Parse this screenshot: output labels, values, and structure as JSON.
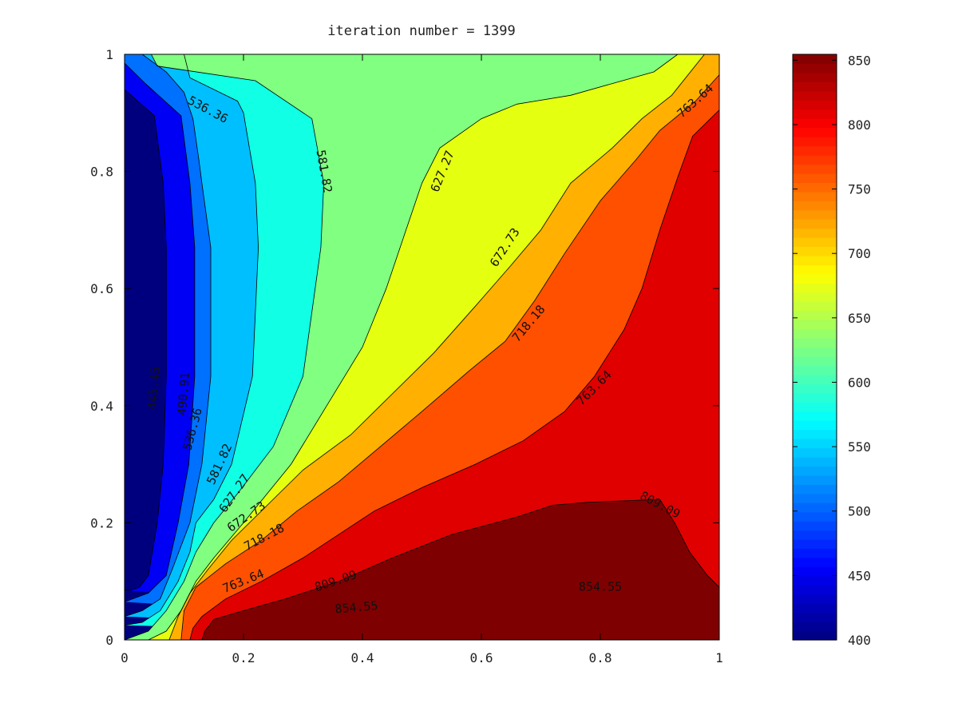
{
  "chart_data": {
    "type": "contour",
    "title": "iteration number = 1399",
    "xlabel": "",
    "ylabel": "",
    "xlim": [
      0,
      1
    ],
    "ylim": [
      0,
      1
    ],
    "x_ticks": [
      "0",
      "0.2",
      "0.4",
      "0.6",
      "0.8",
      "1"
    ],
    "y_ticks": [
      "0",
      "0.2",
      "0.4",
      "0.6",
      "0.8",
      "1"
    ],
    "colorbar": {
      "colormap": "jet",
      "range": [
        400,
        854.55
      ],
      "ticks": [
        "400",
        "450",
        "500",
        "550",
        "600",
        "650",
        "700",
        "750",
        "800",
        "850"
      ]
    },
    "levels": [
      445.45,
      490.91,
      536.36,
      581.82,
      627.27,
      672.73,
      718.18,
      763.64,
      809.09,
      854.55
    ],
    "band_colors": [
      "#00007F",
      "#0000F5",
      "#0070FF",
      "#00BFFF",
      "#10FFE5",
      "#80FF80",
      "#E5FF10",
      "#FFB000",
      "#FF5000",
      "#E00000",
      "#7F0000"
    ],
    "contours": [
      {
        "level": 445.45,
        "points": [
          [
            0,
            0.94
          ],
          [
            0.05,
            0.895
          ],
          [
            0.065,
            0.78
          ],
          [
            0.07,
            0.67
          ],
          [
            0.07,
            0.45
          ],
          [
            0.065,
            0.3
          ],
          [
            0.055,
            0.2
          ],
          [
            0.04,
            0.11
          ],
          [
            0.025,
            0.09
          ],
          [
            0.01,
            0.085
          ],
          [
            0,
            0.085
          ]
        ]
      },
      {
        "level": 490.91,
        "points": [
          [
            0,
            0.985
          ],
          [
            0.035,
            0.95
          ],
          [
            0.095,
            0.895
          ],
          [
            0.11,
            0.78
          ],
          [
            0.118,
            0.67
          ],
          [
            0.118,
            0.45
          ],
          [
            0.108,
            0.3
          ],
          [
            0.09,
            0.2
          ],
          [
            0.07,
            0.11
          ],
          [
            0.04,
            0.08
          ],
          [
            0,
            0.065
          ]
        ]
      },
      {
        "level": 536.36,
        "points": [
          [
            0.03,
            1
          ],
          [
            0.07,
            0.97
          ],
          [
            0.1,
            0.935
          ],
          [
            0.115,
            0.89
          ],
          [
            0.125,
            0.82
          ],
          [
            0.13,
            0.78
          ],
          [
            0.145,
            0.67
          ],
          [
            0.145,
            0.45
          ],
          [
            0.13,
            0.3
          ],
          [
            0.11,
            0.2
          ],
          [
            0.08,
            0.12
          ],
          [
            0.06,
            0.07
          ],
          [
            0.03,
            0.05
          ],
          [
            0,
            0.04
          ]
        ]
      },
      {
        "level": 581.82,
        "points": [
          [
            0.1,
            1
          ],
          [
            0.11,
            0.96
          ],
          [
            0.19,
            0.92
          ],
          [
            0.2,
            0.9
          ],
          [
            0.22,
            0.78
          ],
          [
            0.225,
            0.67
          ],
          [
            0.215,
            0.45
          ],
          [
            0.18,
            0.3
          ],
          [
            0.15,
            0.24
          ],
          [
            0.12,
            0.2
          ],
          [
            0.11,
            0.15
          ],
          [
            0.09,
            0.1
          ],
          [
            0.06,
            0.05
          ],
          [
            0.03,
            0.03
          ],
          [
            0,
            0.025
          ]
        ]
      },
      {
        "level": 627.27,
        "points": [
          [
            0.045,
            1
          ],
          [
            0.055,
            0.98
          ],
          [
            0.22,
            0.955
          ],
          [
            0.315,
            0.89
          ],
          [
            0.335,
            0.78
          ],
          [
            0.33,
            0.67
          ],
          [
            0.3,
            0.45
          ],
          [
            0.25,
            0.33
          ],
          [
            0.19,
            0.25
          ],
          [
            0.15,
            0.2
          ],
          [
            0.12,
            0.15
          ],
          [
            0.1,
            0.1
          ],
          [
            0.07,
            0.05
          ],
          [
            0.04,
            0.015
          ],
          [
            0,
            0
          ]
        ]
      },
      {
        "level": 672.73,
        "points": [
          [
            0.93,
            1
          ],
          [
            0.89,
            0.97
          ],
          [
            0.82,
            0.95
          ],
          [
            0.75,
            0.93
          ],
          [
            0.66,
            0.915
          ],
          [
            0.6,
            0.89
          ],
          [
            0.53,
            0.84
          ],
          [
            0.5,
            0.78
          ],
          [
            0.47,
            0.69
          ],
          [
            0.44,
            0.6
          ],
          [
            0.4,
            0.5
          ],
          [
            0.34,
            0.4
          ],
          [
            0.28,
            0.3
          ],
          [
            0.2,
            0.2
          ],
          [
            0.15,
            0.14
          ],
          [
            0.12,
            0.1
          ],
          [
            0.095,
            0.05
          ],
          [
            0.07,
            0.015
          ],
          [
            0.04,
            0
          ],
          [
            0,
            0
          ]
        ]
      },
      {
        "level": 718.18,
        "points": [
          [
            0.975,
            1
          ],
          [
            0.92,
            0.93
          ],
          [
            0.87,
            0.89
          ],
          [
            0.82,
            0.84
          ],
          [
            0.75,
            0.78
          ],
          [
            0.7,
            0.7
          ],
          [
            0.65,
            0.64
          ],
          [
            0.59,
            0.57
          ],
          [
            0.52,
            0.49
          ],
          [
            0.45,
            0.42
          ],
          [
            0.38,
            0.35
          ],
          [
            0.3,
            0.29
          ],
          [
            0.24,
            0.23
          ],
          [
            0.18,
            0.17
          ],
          [
            0.14,
            0.12
          ],
          [
            0.11,
            0.08
          ],
          [
            0.09,
            0.04
          ],
          [
            0.075,
            0
          ],
          [
            0.07,
            0
          ]
        ]
      },
      {
        "level": 763.64,
        "points": [
          [
            1,
            0.965
          ],
          [
            0.96,
            0.92
          ],
          [
            0.9,
            0.87
          ],
          [
            0.86,
            0.82
          ],
          [
            0.8,
            0.75
          ],
          [
            0.74,
            0.66
          ],
          [
            0.69,
            0.58
          ],
          [
            0.64,
            0.51
          ],
          [
            0.58,
            0.46
          ],
          [
            0.5,
            0.39
          ],
          [
            0.43,
            0.33
          ],
          [
            0.36,
            0.27
          ],
          [
            0.29,
            0.22
          ],
          [
            0.23,
            0.17
          ],
          [
            0.17,
            0.13
          ],
          [
            0.12,
            0.09
          ],
          [
            0.1,
            0.05
          ],
          [
            0.095,
            0
          ],
          [
            0.09,
            0
          ]
        ]
      },
      {
        "level": 809.09,
        "points": [
          [
            1,
            0.905
          ],
          [
            0.955,
            0.86
          ],
          [
            0.93,
            0.79
          ],
          [
            0.9,
            0.7
          ],
          [
            0.87,
            0.6
          ],
          [
            0.84,
            0.53
          ],
          [
            0.79,
            0.45
          ],
          [
            0.74,
            0.39
          ],
          [
            0.67,
            0.34
          ],
          [
            0.59,
            0.3
          ],
          [
            0.5,
            0.26
          ],
          [
            0.42,
            0.22
          ],
          [
            0.36,
            0.18
          ],
          [
            0.3,
            0.14
          ],
          [
            0.23,
            0.1
          ],
          [
            0.17,
            0.07
          ],
          [
            0.13,
            0.04
          ],
          [
            0.115,
            0.02
          ],
          [
            0.11,
            0
          ]
        ]
      },
      {
        "level": 854.55,
        "points": [
          [
            1,
            0.09
          ],
          [
            0.98,
            0.11
          ],
          [
            0.95,
            0.15
          ],
          [
            0.925,
            0.2
          ],
          [
            0.9,
            0.24
          ],
          [
            0.78,
            0.235
          ],
          [
            0.72,
            0.23
          ],
          [
            0.66,
            0.21
          ],
          [
            0.55,
            0.18
          ],
          [
            0.45,
            0.14
          ],
          [
            0.36,
            0.1
          ],
          [
            0.27,
            0.07
          ],
          [
            0.2,
            0.05
          ],
          [
            0.15,
            0.035
          ],
          [
            0.135,
            0.015
          ],
          [
            0.13,
            0
          ]
        ]
      }
    ],
    "contour_labels": [
      {
        "text": "536.36",
        "x": 0.14,
        "y": 0.905,
        "angle": 28
      },
      {
        "text": "581.82",
        "x": 0.335,
        "y": 0.8,
        "angle": 80
      },
      {
        "text": "627.27",
        "x": 0.535,
        "y": 0.8,
        "angle": -68
      },
      {
        "text": "672.73",
        "x": 0.64,
        "y": 0.67,
        "angle": -57
      },
      {
        "text": "718.18",
        "x": 0.68,
        "y": 0.54,
        "angle": -50
      },
      {
        "text": "763.64",
        "x": 0.79,
        "y": 0.43,
        "angle": -45
      },
      {
        "text": "763.64",
        "x": 0.96,
        "y": 0.92,
        "angle": -42
      },
      {
        "text": "809.09",
        "x": 0.9,
        "y": 0.23,
        "angle": 28
      },
      {
        "text": "854.55",
        "x": 0.8,
        "y": 0.09,
        "angle": 0
      },
      {
        "text": "854.55",
        "x": 0.39,
        "y": 0.055,
        "angle": -5
      },
      {
        "text": "809.09",
        "x": 0.355,
        "y": 0.1,
        "angle": -18
      },
      {
        "text": "763.64",
        "x": 0.2,
        "y": 0.1,
        "angle": -22
      },
      {
        "text": "718.18",
        "x": 0.235,
        "y": 0.175,
        "angle": -28
      },
      {
        "text": "672.73",
        "x": 0.205,
        "y": 0.21,
        "angle": -35
      },
      {
        "text": "627.27",
        "x": 0.185,
        "y": 0.25,
        "angle": -55
      },
      {
        "text": "581.82",
        "x": 0.16,
        "y": 0.3,
        "angle": -65
      },
      {
        "text": "536.36",
        "x": 0.115,
        "y": 0.36,
        "angle": -75
      },
      {
        "text": "490.91",
        "x": 0.1,
        "y": 0.42,
        "angle": -85
      },
      {
        "text": "445.45",
        "x": 0.05,
        "y": 0.43,
        "angle": -85
      }
    ]
  }
}
